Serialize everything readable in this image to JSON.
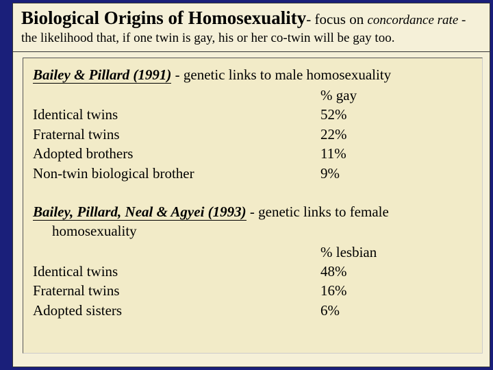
{
  "colors": {
    "page_bg": "#1a1f7a",
    "panel_bg": "#f5f0d8",
    "inner_bg": "#f2ebc8",
    "text": "#000000",
    "border": "#333333"
  },
  "header": {
    "title": "Biological Origins of Homosexuality",
    "tail": "- focus on ",
    "emph": "concordance rate",
    "rest": " - the likelihood that, if one twin is gay, his or her co-twin will be gay too."
  },
  "study1": {
    "citation": "Bailey & Pillard (1991)",
    "desc": " - genetic links to male homosexuality",
    "col_header": "% gay",
    "rows": [
      {
        "label": "Identical twins",
        "value": "52%"
      },
      {
        "label": "Fraternal twins",
        "value": "22%"
      },
      {
        "label": "Adopted brothers",
        "value": "11%"
      },
      {
        "label": "Non-twin biological brother",
        "value": "9%"
      }
    ]
  },
  "study2": {
    "citation": "Bailey, Pillard, Neal & Agyei  (1993)",
    "desc": " - genetic links to female homosexuality",
    "col_header": "% lesbian",
    "rows": [
      {
        "label": "Identical twins",
        "value": "48%"
      },
      {
        "label": "Fraternal twins",
        "value": "16%"
      },
      {
        "label": "Adopted sisters",
        "value": "6%"
      }
    ]
  }
}
